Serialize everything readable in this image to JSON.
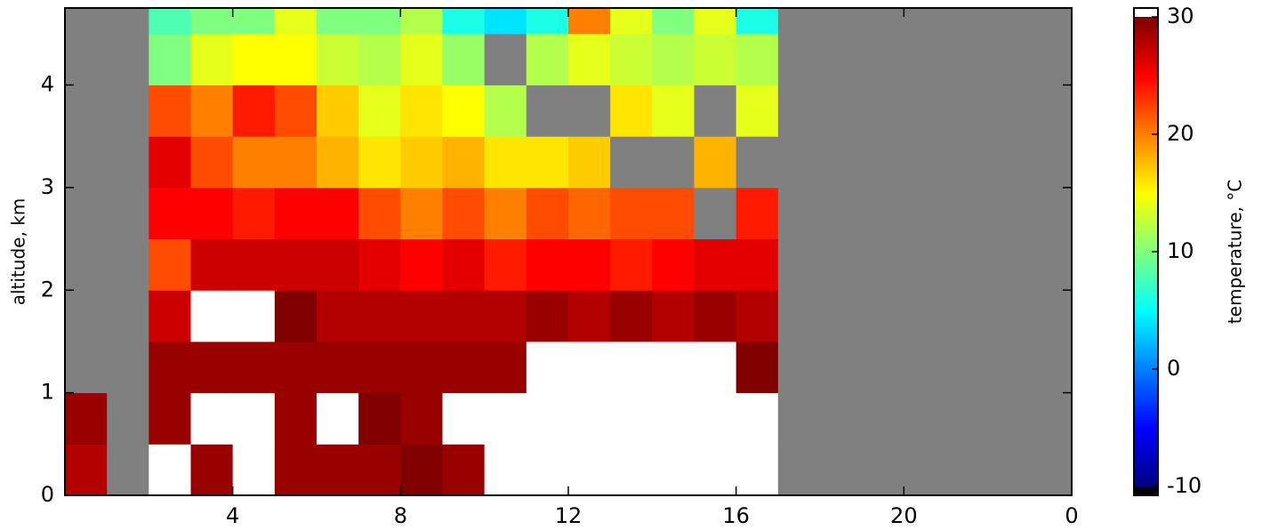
{
  "chart_data": {
    "type": "heatmap",
    "x": [
      0,
      1,
      2,
      3,
      4,
      5,
      6,
      7,
      8,
      9,
      10,
      11,
      12,
      13,
      14,
      15,
      16,
      17,
      18,
      19,
      20,
      21,
      22,
      23,
      24
    ],
    "y": [
      0,
      0.5,
      1,
      1.5,
      2,
      2.5,
      3,
      3.5,
      4,
      4.5,
      4.75
    ],
    "z": [
      [
        28,
        null,
        31,
        29,
        31,
        29,
        29,
        29,
        30,
        29,
        31,
        31,
        31,
        31,
        31,
        31,
        31,
        null,
        null,
        null,
        null,
        null,
        null,
        null
      ],
      [
        29,
        null,
        29,
        31,
        31,
        29,
        31,
        30,
        29,
        31,
        31,
        31,
        31,
        31,
        31,
        31,
        31,
        null,
        null,
        null,
        null,
        null,
        null,
        null
      ],
      [
        null,
        null,
        29,
        29,
        29,
        29,
        29,
        29,
        29,
        29,
        29,
        31,
        31,
        31,
        31,
        31,
        30,
        null,
        null,
        null,
        null,
        null,
        null,
        null
      ],
      [
        null,
        null,
        27,
        31,
        31,
        30,
        28,
        28,
        28,
        28,
        28,
        29,
        28,
        29,
        28,
        29,
        28,
        null,
        null,
        null,
        null,
        null,
        null,
        null
      ],
      [
        null,
        null,
        22,
        27,
        27,
        27,
        27,
        26,
        25,
        26,
        24,
        25,
        25,
        24,
        25,
        26,
        26,
        null,
        null,
        null,
        null,
        null,
        null,
        null
      ],
      [
        null,
        null,
        25,
        25,
        24,
        25,
        25,
        22,
        20,
        22,
        20,
        22,
        21,
        22,
        22,
        null,
        24,
        null,
        null,
        null,
        null,
        null,
        null,
        null
      ],
      [
        null,
        null,
        26,
        22,
        20,
        20,
        18,
        16,
        17,
        18,
        16,
        16,
        17,
        null,
        null,
        18,
        null,
        null,
        null,
        null,
        null,
        null,
        null,
        null
      ],
      [
        null,
        null,
        22,
        20,
        24,
        22,
        17,
        14,
        16,
        15,
        12,
        null,
        null,
        16,
        14,
        null,
        14,
        null,
        null,
        null,
        null,
        null,
        null,
        null
      ],
      [
        null,
        null,
        10,
        14,
        15,
        15,
        13,
        12,
        14,
        11,
        null,
        12,
        14,
        13,
        12,
        13,
        12,
        null,
        null,
        null,
        null,
        null,
        null,
        null
      ],
      [
        null,
        null,
        8,
        10,
        10,
        14,
        10,
        10,
        12,
        6,
        4,
        6,
        20,
        14,
        10,
        14,
        6,
        null,
        null,
        null,
        null,
        null,
        null,
        null
      ]
    ],
    "xlim": [
      0,
      24
    ],
    "xticks": [
      4,
      8,
      12,
      16,
      20,
      {
        "value": 24,
        "label": "0"
      }
    ],
    "ylim": [
      0,
      4.75
    ],
    "yticks": [
      0,
      1,
      2,
      3,
      4
    ],
    "ylabel": "altitude, km",
    "colormap": "jet",
    "clim": [
      -10,
      30
    ],
    "cticks": [
      -10,
      0,
      10,
      20,
      30
    ],
    "clabel": "temperature, °C",
    "over_color": "#ffffff",
    "under_color": "#000000",
    "missing_color": "#808080"
  }
}
